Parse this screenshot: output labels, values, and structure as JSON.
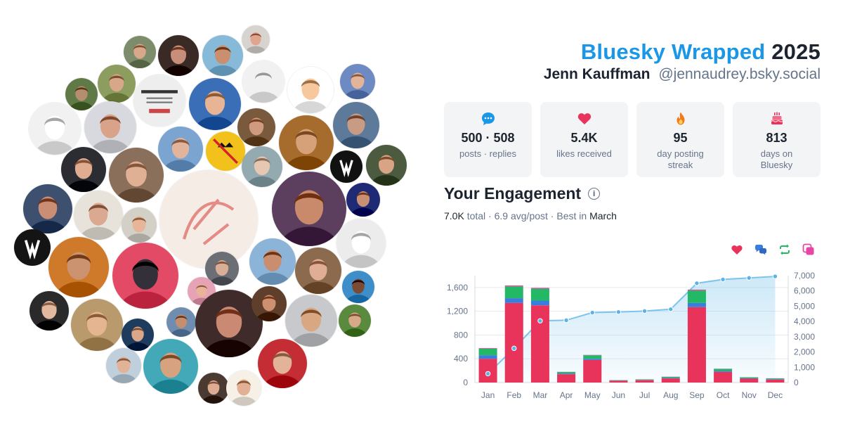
{
  "header": {
    "brand": "Bluesky Wrapped",
    "year": "2025",
    "name": "Jenn Kauffman",
    "handle": "@jennaudrey.bsky.social"
  },
  "stats": [
    {
      "icon": "speech-bubble-icon",
      "value": "500 · 508",
      "label": "posts · replies"
    },
    {
      "icon": "heart-icon",
      "value": "5.4K",
      "label": "likes received"
    },
    {
      "icon": "flame-icon",
      "value": "95",
      "label": "day posting streak"
    },
    {
      "icon": "cake-icon",
      "value": "813",
      "label": "days on Bluesky"
    }
  ],
  "engagement": {
    "title": "Your Engagement",
    "total": "7.0K",
    "total_word": "total",
    "avg": "6.9 avg/post",
    "best_prefix": "Best in",
    "best_month": "March"
  },
  "legend": [
    {
      "name": "likes",
      "icon": "heart-icon",
      "color": "#e8335a"
    },
    {
      "name": "replies",
      "icon": "reply-bubbles-icon",
      "color": "#3b7ddd"
    },
    {
      "name": "reposts",
      "icon": "repost-icon",
      "color": "#22b865"
    },
    {
      "name": "quotes",
      "icon": "quote-icon",
      "color": "#e646a4"
    }
  ],
  "chart_data": {
    "type": "bar",
    "categories": [
      "Jan",
      "Feb",
      "Mar",
      "Apr",
      "May",
      "Jun",
      "Jul",
      "Aug",
      "Sep",
      "Oct",
      "Nov",
      "Dec"
    ],
    "series": [
      {
        "name": "likes",
        "color": "#e8335a",
        "values": [
          400,
          1340,
          1300,
          140,
          380,
          30,
          40,
          70,
          1270,
          180,
          65,
          50
        ]
      },
      {
        "name": "replies",
        "color": "#3b7ddd",
        "values": [
          60,
          80,
          80,
          12,
          20,
          4,
          5,
          10,
          70,
          15,
          8,
          8
        ]
      },
      {
        "name": "reposts",
        "color": "#22b865",
        "values": [
          110,
          200,
          200,
          25,
          60,
          6,
          8,
          15,
          210,
          35,
          15,
          12
        ]
      },
      {
        "name": "quotes",
        "color": "#e646a4",
        "values": [
          10,
          15,
          15,
          3,
          5,
          1,
          1,
          3,
          15,
          3,
          2,
          2
        ]
      }
    ],
    "cumulative": {
      "color": "#7cc4ec",
      "values": [
        580,
        2240,
        4040,
        4080,
        4580,
        4620,
        4680,
        4800,
        6500,
        6750,
        6850,
        6950
      ]
    },
    "ylim_left": [
      0,
      1800
    ],
    "ylim_right": [
      0,
      7000
    ],
    "yticks_left": [
      0,
      400,
      800,
      1200,
      1600
    ],
    "yticks_right": [
      0,
      1000,
      2000,
      3000,
      4000,
      5000,
      6000,
      7000
    ],
    "ytick_labels_left": [
      "0",
      "400",
      "800",
      "1,200",
      "1,600"
    ],
    "ytick_labels_right": [
      "0",
      "1,000",
      "2,000",
      "3,000",
      "4,000",
      "5,000",
      "6,000",
      "7,000"
    ],
    "grid": true
  },
  "avatars": [
    {
      "icon": "avatar",
      "bg": "#7d8c6a",
      "skin": "#d9a88a"
    },
    {
      "icon": "avatar",
      "bg": "#3a2a26",
      "skin": "#c78e7a"
    },
    {
      "icon": "avatar",
      "bg": "#87b9d8",
      "skin": "#c98f6e"
    },
    {
      "icon": "avatar",
      "bg": "#d7d4cf",
      "skin": "#e1a48c"
    },
    {
      "icon": "avatar",
      "bg": "#f1f1f1",
      "skin": "#f1f1f1"
    },
    {
      "icon": "avatar",
      "bg": "#ffffff",
      "skin": "#f7c79e"
    },
    {
      "icon": "avatar",
      "bg": "#6e8ac2",
      "skin": "#e2b59a"
    },
    {
      "icon": "avatar",
      "bg": "#5f7a47",
      "skin": "#b58d6f"
    },
    {
      "icon": "avatar",
      "bg": "#8c9d5f",
      "skin": "#d7a78a"
    },
    {
      "icon": "book-cover-image",
      "bg": "#eeeeee",
      "skin": "#888888"
    },
    {
      "icon": "avatar",
      "bg": "#3a6fb8",
      "skin": "#e7b596"
    },
    {
      "icon": "avatar",
      "bg": "#f1f1f1",
      "skin": "#ffffff"
    },
    {
      "icon": "avatar",
      "bg": "#d7d9df",
      "skin": "#d9a38a"
    },
    {
      "icon": "avatar",
      "bg": "#7a5a3c",
      "skin": "#cf9a7d"
    },
    {
      "icon": "avatar",
      "bg": "#a66c2e",
      "skin": "#d6a179"
    },
    {
      "icon": "avatar",
      "bg": "#5d7a9a",
      "skin": "#c79b84"
    },
    {
      "icon": "avatar",
      "bg": "#2b2d33",
      "skin": "#e1ad91"
    },
    {
      "icon": "avatar",
      "bg": "#8a6f5a",
      "skin": "#e0b094"
    },
    {
      "icon": "avatar",
      "bg": "#7ca4d1",
      "skin": "#e2b49c"
    },
    {
      "icon": "no-kings-badge",
      "bg": "#f2c11b",
      "skin": "#111111"
    },
    {
      "icon": "avatar",
      "bg": "#93aab0",
      "skin": "#e6c7b2"
    },
    {
      "icon": "newspaper-logo",
      "bg": "#111111",
      "skin": "#ffffff"
    },
    {
      "icon": "avatar",
      "bg": "#4c5b3f",
      "skin": "#d7a486"
    },
    {
      "icon": "avatar",
      "bg": "#3d5070",
      "skin": "#c98e74"
    },
    {
      "icon": "avatar",
      "bg": "#e8e3da",
      "skin": "#dba891"
    },
    {
      "icon": "sketch-image",
      "bg": "#f5ece6",
      "skin": "#e58b86"
    },
    {
      "icon": "avatar",
      "bg": "#d3d0c8",
      "skin": "#e7b698"
    },
    {
      "icon": "avatar",
      "bg": "#5c3f5e",
      "skin": "#c88a6a"
    },
    {
      "icon": "avatar",
      "bg": "#1e2a73",
      "skin": "#c98f74"
    },
    {
      "icon": "newspaper-logo",
      "bg": "#141414",
      "skin": "#ffffff"
    },
    {
      "icon": "avatar",
      "bg": "#cf7a2a",
      "skin": "#cc9371"
    },
    {
      "icon": "avatar",
      "bg": "#e34a66",
      "skin": "#34303a"
    },
    {
      "icon": "avatar",
      "bg": "#6b6f75",
      "skin": "#d9ae96"
    },
    {
      "icon": "avatar",
      "bg": "#8cb3d8",
      "skin": "#c98e70"
    },
    {
      "icon": "avatar",
      "bg": "#8b6a4e",
      "skin": "#dfae95"
    },
    {
      "icon": "avatar",
      "bg": "#ececec",
      "skin": "#ffffff"
    },
    {
      "icon": "avatar",
      "bg": "#3d8ec9",
      "skin": "#7a4a32"
    },
    {
      "icon": "avatar",
      "bg": "#2a2a2a",
      "skin": "#e2b89f"
    },
    {
      "icon": "avatar",
      "bg": "#b89a6c",
      "skin": "#e4b590"
    },
    {
      "icon": "avatar",
      "bg": "#1d3c5e",
      "skin": "#d9a88a"
    },
    {
      "icon": "avatar",
      "bg": "#e5a3b5",
      "skin": "#e9b39a"
    },
    {
      "icon": "avatar",
      "bg": "#6f8daf",
      "skin": "#c58e71"
    },
    {
      "icon": "avatar",
      "bg": "#3f2c2a",
      "skin": "#c98973"
    },
    {
      "icon": "avatar",
      "bg": "#5f3e2c",
      "skin": "#cd9070"
    },
    {
      "icon": "avatar",
      "bg": "#c7c9cc",
      "skin": "#d9a882"
    },
    {
      "icon": "avatar",
      "bg": "#5a8a3e",
      "skin": "#d7a88a"
    },
    {
      "icon": "avatar",
      "bg": "#bfcfdc",
      "skin": "#e2b396"
    },
    {
      "icon": "avatar",
      "bg": "#43a9b8",
      "skin": "#d6a27f"
    },
    {
      "icon": "avatar",
      "bg": "#4a3a32",
      "skin": "#ddac93"
    },
    {
      "icon": "avatar",
      "bg": "#f6f0e6",
      "skin": "#e2b095"
    },
    {
      "icon": "avatar",
      "bg": "#c52d34",
      "skin": "#e3b399"
    },
    {
      "icon": "avatar",
      "bg": "#c9b59f",
      "skin": "#d4a48b"
    },
    {
      "icon": "avatar",
      "bg": "#a2b8c7",
      "skin": "#d6a58a"
    },
    {
      "icon": "avatar",
      "bg": "#c7ae85",
      "skin": "#deac8d"
    },
    {
      "icon": "avatar",
      "bg": "#6b4e3b",
      "skin": "#d9a283"
    },
    {
      "icon": "avatar",
      "bg": "#2f6fa8",
      "skin": "#e0a98a"
    }
  ]
}
